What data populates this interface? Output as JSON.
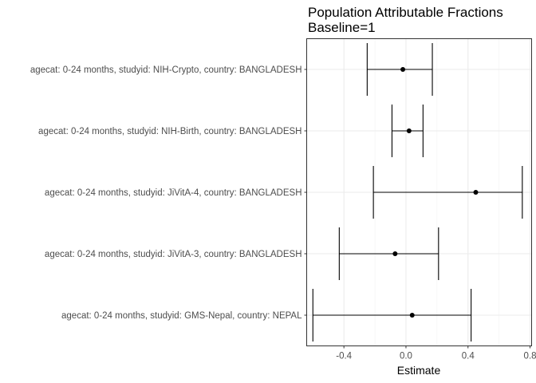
{
  "chart_data": {
    "type": "forest",
    "title_lines": [
      "Population Attributable Fractions",
      "Baseline=1"
    ],
    "xlabel": "Estimate",
    "ylabel": "",
    "xlim": [
      -0.64,
      0.81
    ],
    "x_ticks": [
      -0.4,
      0.0,
      0.4,
      0.8
    ],
    "x_tick_labels": [
      "-0.4",
      "0.0",
      "0.4",
      "0.8"
    ],
    "grid": true,
    "categories": [
      "agecat: 0-24 months, studyid: NIH-Crypto, country: BANGLADESH",
      "agecat: 0-24 months, studyid: NIH-Birth, country: BANGLADESH",
      "agecat: 0-24 months, studyid: JiVitA-4, country: BANGLADESH",
      "agecat: 0-24 months, studyid: JiVitA-3, country: BANGLADESH",
      "agecat: 0-24 months, studyid: GMS-Nepal, country: NEPAL"
    ],
    "estimates": [
      -0.02,
      0.02,
      0.45,
      -0.07,
      0.04
    ],
    "lower": [
      -0.25,
      -0.09,
      -0.21,
      -0.43,
      -0.6
    ],
    "upper": [
      0.17,
      0.11,
      0.75,
      0.21,
      0.42
    ]
  }
}
